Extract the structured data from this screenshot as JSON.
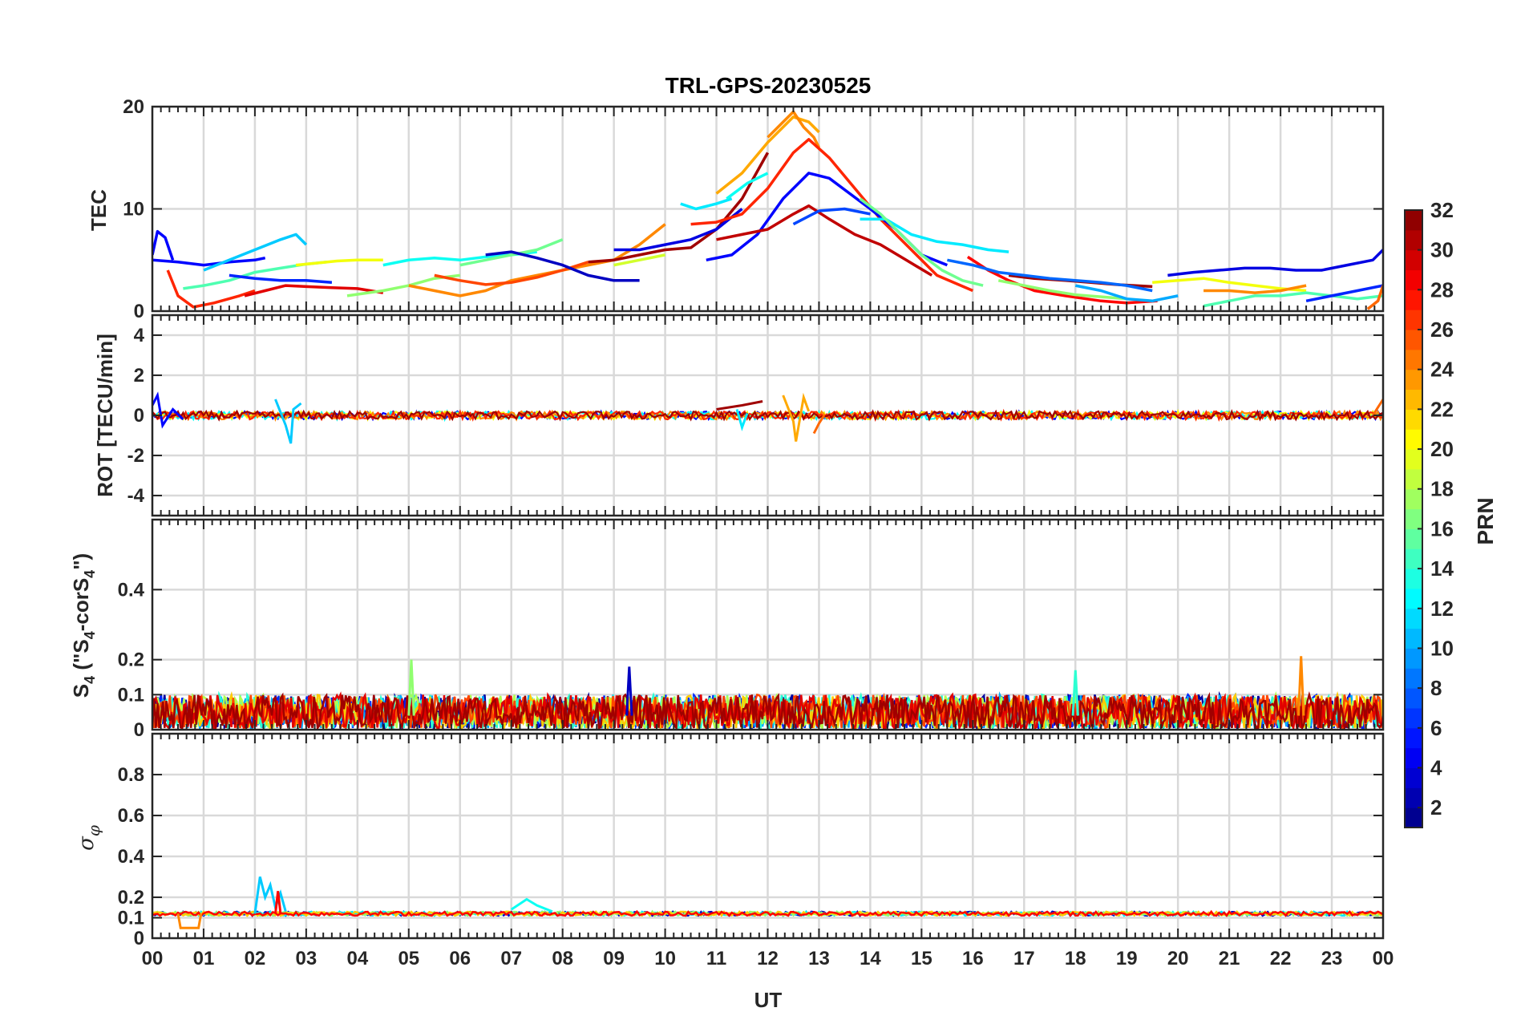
{
  "title": "TRL-GPS-20230525",
  "xlabel": "UT",
  "x_tick_labels": [
    "00",
    "01",
    "02",
    "03",
    "04",
    "05",
    "06",
    "07",
    "08",
    "09",
    "10",
    "11",
    "12",
    "13",
    "14",
    "15",
    "16",
    "17",
    "18",
    "19",
    "20",
    "21",
    "22",
    "23",
    "00"
  ],
  "panels": [
    {
      "key": "tec",
      "ylabel": "TEC",
      "ylim": [
        0,
        20
      ],
      "yticks": [
        0,
        10,
        20
      ],
      "ytick_labels": [
        "0",
        "10",
        "20"
      ],
      "grid_y": [
        10
      ]
    },
    {
      "key": "rot",
      "ylabel": "ROT [TECU/min]",
      "ylim": [
        -5,
        5
      ],
      "yticks": [
        -4,
        -2,
        0,
        2,
        4
      ],
      "ytick_labels": [
        "-4",
        "-2",
        "0",
        "2",
        "4"
      ],
      "grid_y": [
        -4,
        -2,
        0,
        2,
        4
      ]
    },
    {
      "key": "s4",
      "ylabel_main": "S",
      "ylabel_sub1": "4",
      "ylabel_mid": " (\"S",
      "ylabel_sub2": "4",
      "ylabel_mid2": "-corS",
      "ylabel_sub3": "4",
      "ylabel_end": "\")",
      "ylim": [
        0,
        0.6
      ],
      "yticks": [
        0,
        0.1,
        0.2,
        0.4
      ],
      "ytick_labels": [
        "0",
        "0.1",
        "0.2",
        "0.4"
      ],
      "grid_y": [
        0.1,
        0.2,
        0.4
      ]
    },
    {
      "key": "sigma",
      "ylabel_symbol": "σ",
      "ylabel_sub": "φ",
      "ylim": [
        0,
        1
      ],
      "yticks": [
        0,
        0.1,
        0.2,
        0.4,
        0.6,
        0.8
      ],
      "ytick_labels": [
        "0",
        "0.1",
        "0.2",
        "0.4",
        "0.6",
        "0.8"
      ],
      "grid_y": [
        0.1,
        0.2,
        0.4,
        0.6,
        0.8
      ]
    }
  ],
  "colorbar": {
    "label": "PRN",
    "range": [
      1,
      32
    ],
    "tick_values": [
      2,
      4,
      6,
      8,
      10,
      12,
      14,
      16,
      18,
      20,
      22,
      24,
      26,
      28,
      30,
      32
    ],
    "tick_labels": [
      "2",
      "4",
      "6",
      "8",
      "10",
      "12",
      "14",
      "16",
      "18",
      "20",
      "22",
      "24",
      "26",
      "28",
      "30",
      "32"
    ],
    "colormap": "jet"
  },
  "chart_data": {
    "type": "line",
    "title": "TRL-GPS-20230525",
    "xlabel": "UT",
    "xlim": [
      0,
      24
    ],
    "grid": true,
    "tec_series": [
      {
        "prn": 5,
        "x": [
          0.0,
          0.1,
          0.25,
          0.4
        ],
        "y": [
          5.5,
          7.8,
          7.2,
          5.0
        ]
      },
      {
        "prn": 5,
        "x": [
          0.0,
          0.5,
          1.0,
          1.5,
          2.0,
          2.2
        ],
        "y": [
          5.0,
          4.8,
          4.5,
          4.8,
          5.0,
          5.2
        ]
      },
      {
        "prn": 11,
        "x": [
          1.0,
          1.5,
          2.0,
          2.5,
          2.8,
          3.0
        ],
        "y": [
          4.0,
          5.0,
          6.0,
          7.0,
          7.5,
          6.5
        ]
      },
      {
        "prn": 15,
        "x": [
          0.6,
          1.0,
          1.5,
          2.0,
          2.5,
          3.0,
          3.4
        ],
        "y": [
          2.2,
          2.5,
          3.0,
          3.8,
          4.2,
          4.6,
          4.8
        ]
      },
      {
        "prn": 20,
        "x": [
          2.8,
          3.2,
          3.6,
          4.0,
          4.5
        ],
        "y": [
          4.5,
          4.7,
          4.9,
          5.0,
          5.0
        ]
      },
      {
        "prn": 27,
        "x": [
          0.3,
          0.5,
          0.8,
          1.2,
          1.7,
          2.0
        ],
        "y": [
          4.0,
          1.5,
          0.4,
          0.8,
          1.5,
          2.0
        ]
      },
      {
        "prn": 29,
        "x": [
          1.8,
          2.2,
          2.6,
          3.0,
          3.5,
          4.0,
          4.5
        ],
        "y": [
          1.5,
          2.0,
          2.5,
          2.4,
          2.3,
          2.2,
          1.8
        ]
      },
      {
        "prn": 6,
        "x": [
          1.5,
          2.0,
          2.5,
          3.0,
          3.5
        ],
        "y": [
          3.5,
          3.2,
          3.0,
          3.0,
          2.8
        ]
      },
      {
        "prn": 17,
        "x": [
          3.8,
          4.5,
          5.0,
          5.5,
          6.0
        ],
        "y": [
          1.5,
          2.0,
          2.5,
          3.2,
          3.5
        ]
      },
      {
        "prn": 13,
        "x": [
          4.5,
          5.0,
          5.5,
          6.0,
          6.5,
          7.0,
          7.5
        ],
        "y": [
          4.5,
          5.0,
          5.2,
          5.0,
          5.3,
          5.5,
          5.8
        ]
      },
      {
        "prn": 16,
        "x": [
          6.0,
          6.5,
          7.0,
          7.5,
          8.0
        ],
        "y": [
          4.5,
          5.0,
          5.5,
          6.0,
          7.0
        ]
      },
      {
        "prn": 24,
        "x": [
          5.0,
          5.5,
          6.0,
          6.5,
          7.0,
          7.5,
          8.0,
          8.5,
          9.0,
          9.5,
          10.0
        ],
        "y": [
          2.5,
          2.0,
          1.5,
          2.0,
          3.0,
          3.5,
          4.0,
          4.5,
          5.0,
          6.5,
          8.5
        ]
      },
      {
        "prn": 26,
        "x": [
          5.5,
          6.0,
          6.5,
          7.0,
          7.5,
          8.0,
          8.5
        ],
        "y": [
          3.5,
          3.0,
          2.6,
          2.8,
          3.3,
          4.0,
          4.8
        ]
      },
      {
        "prn": 3,
        "x": [
          6.5,
          7.0,
          7.5,
          8.0,
          8.5,
          9.0,
          9.5
        ],
        "y": [
          5.5,
          5.8,
          5.2,
          4.5,
          3.5,
          3.0,
          3.0
        ]
      },
      {
        "prn": 31,
        "x": [
          8.5,
          9.0,
          9.5,
          10.0,
          10.5,
          11.0,
          11.5,
          12.0
        ],
        "y": [
          4.8,
          5.0,
          5.5,
          6.0,
          6.2,
          8.0,
          11.0,
          15.5
        ]
      },
      {
        "prn": 4,
        "x": [
          9.0,
          9.5,
          10.0,
          10.5,
          11.0,
          11.5
        ],
        "y": [
          6.0,
          6.0,
          6.5,
          7.0,
          8.0,
          10.0
        ]
      },
      {
        "prn": 19,
        "x": [
          9.0,
          9.5,
          10.0
        ],
        "y": [
          4.5,
          5.0,
          5.5
        ]
      },
      {
        "prn": 12,
        "x": [
          10.3,
          10.6,
          11.0,
          11.3
        ],
        "y": [
          10.5,
          10.0,
          10.5,
          11.0
        ]
      },
      {
        "prn": 13,
        "x": [
          11.2,
          11.6,
          12.0
        ],
        "y": [
          11.0,
          12.5,
          13.5
        ]
      },
      {
        "prn": 23,
        "x": [
          11.0,
          11.5,
          12.0,
          12.3,
          12.5,
          12.8,
          13.0
        ],
        "y": [
          11.5,
          13.5,
          16.5,
          18.0,
          19.0,
          18.5,
          17.5
        ]
      },
      {
        "prn": 24,
        "x": [
          12.0,
          12.3,
          12.5,
          12.7,
          12.9,
          13.0
        ],
        "y": [
          17.0,
          18.5,
          19.5,
          18.0,
          17.0,
          16.0
        ]
      },
      {
        "prn": 27,
        "x": [
          10.5,
          11.0,
          11.5,
          12.0,
          12.5,
          12.8,
          13.2,
          13.7,
          14.2,
          14.8,
          15.3,
          16.0
        ],
        "y": [
          8.5,
          8.7,
          9.5,
          12.0,
          15.5,
          16.8,
          15.0,
          12.0,
          9.0,
          6.0,
          3.5,
          2.0
        ]
      },
      {
        "prn": 5,
        "x": [
          10.8,
          11.3,
          11.8,
          12.3,
          12.8,
          13.2,
          13.6,
          14.0,
          14.5,
          15.0,
          15.5
        ],
        "y": [
          5.0,
          5.5,
          7.5,
          11.0,
          13.5,
          13.0,
          11.5,
          10.0,
          8.0,
          5.5,
          4.5
        ]
      },
      {
        "prn": 30,
        "x": [
          11.0,
          11.5,
          12.0,
          12.5,
          12.8,
          13.2,
          13.7,
          14.2,
          14.7,
          15.2
        ],
        "y": [
          7.0,
          7.5,
          8.0,
          9.5,
          10.3,
          9.0,
          7.5,
          6.5,
          5.0,
          3.5
        ]
      },
      {
        "prn": 7,
        "x": [
          12.5,
          13.0,
          13.5,
          14.0
        ],
        "y": [
          8.5,
          9.8,
          10.0,
          9.5
        ]
      },
      {
        "prn": 12,
        "x": [
          13.8,
          14.3,
          14.8,
          15.3,
          15.8,
          16.3,
          16.7
        ],
        "y": [
          9.0,
          9.0,
          7.5,
          6.8,
          6.5,
          6.0,
          5.8
        ]
      },
      {
        "prn": 16,
        "x": [
          13.8,
          14.2,
          14.6,
          15.0,
          15.4,
          15.8,
          16.2
        ],
        "y": [
          11.0,
          9.5,
          7.5,
          5.5,
          4.0,
          3.0,
          2.5
        ]
      },
      {
        "prn": 28,
        "x": [
          15.9,
          16.3,
          16.7,
          17.2,
          17.8,
          18.5,
          19.0,
          19.6
        ],
        "y": [
          5.3,
          4.0,
          3.0,
          2.0,
          1.5,
          1.0,
          0.8,
          1.0
        ]
      },
      {
        "prn": 31,
        "x": [
          16.7,
          17.2,
          17.8,
          18.3,
          18.8,
          19.5
        ],
        "y": [
          3.5,
          3.2,
          3.0,
          2.8,
          2.6,
          2.4
        ]
      },
      {
        "prn": 17,
        "x": [
          16.5,
          17.0,
          17.5,
          18.0,
          18.5,
          19.0
        ],
        "y": [
          3.0,
          2.5,
          2.0,
          1.6,
          1.4,
          1.2
        ]
      },
      {
        "prn": 8,
        "x": [
          15.5,
          16.0,
          16.5,
          17.0,
          17.5,
          18.0,
          18.5,
          19.0,
          19.5
        ],
        "y": [
          5.0,
          4.5,
          3.8,
          3.5,
          3.2,
          3.0,
          2.8,
          2.5,
          2.0
        ]
      },
      {
        "prn": 4,
        "x": [
          19.8,
          20.3,
          20.8,
          21.3,
          21.8,
          22.3,
          22.8,
          23.3,
          23.8,
          24.0
        ],
        "y": [
          3.5,
          3.8,
          4.0,
          4.2,
          4.2,
          4.0,
          4.0,
          4.5,
          5.0,
          6.0
        ]
      },
      {
        "prn": 10,
        "x": [
          18.0,
          18.5,
          19.0,
          19.5,
          20.0
        ],
        "y": [
          2.5,
          2.0,
          1.2,
          1.0,
          1.5
        ]
      },
      {
        "prn": 20,
        "x": [
          19.5,
          20.0,
          20.5,
          21.0,
          21.5,
          22.0,
          22.5
        ],
        "y": [
          2.8,
          3.0,
          3.2,
          2.8,
          2.5,
          2.2,
          2.0
        ]
      },
      {
        "prn": 24,
        "x": [
          20.5,
          21.0,
          21.5,
          22.0,
          22.5
        ],
        "y": [
          2.0,
          2.0,
          1.8,
          2.0,
          2.5
        ]
      },
      {
        "prn": 15,
        "x": [
          20.5,
          21.0,
          21.5,
          22.0,
          22.5,
          23.0,
          23.5,
          24.0
        ],
        "y": [
          0.5,
          1.0,
          1.5,
          1.5,
          1.8,
          1.5,
          1.2,
          1.5
        ]
      },
      {
        "prn": 6,
        "x": [
          22.5,
          23.0,
          23.5,
          24.0
        ],
        "y": [
          1.0,
          1.5,
          2.0,
          2.5
        ]
      },
      {
        "prn": 25,
        "x": [
          23.7,
          23.9,
          24.0
        ],
        "y": [
          0.2,
          1.0,
          2.5
        ]
      }
    ],
    "rot_series": [
      {
        "prn": 5,
        "x": [
          0.0,
          0.1,
          0.2,
          0.4,
          0.6
        ],
        "y": [
          0.5,
          1.0,
          -0.5,
          0.3,
          -0.2
        ]
      },
      {
        "prn": 11,
        "x": [
          2.4,
          2.6,
          2.7,
          2.75,
          2.9
        ],
        "y": [
          0.8,
          -0.5,
          -1.4,
          0.3,
          0.6
        ]
      },
      {
        "prn": 23,
        "x": [
          12.3,
          12.5,
          12.55,
          12.7,
          12.8
        ],
        "y": [
          1.0,
          -0.3,
          -1.3,
          0.9,
          0.2
        ]
      },
      {
        "prn": 25,
        "x": [
          12.9,
          13.0,
          13.1
        ],
        "y": [
          -0.9,
          -0.4,
          0.0
        ]
      },
      {
        "prn": 12,
        "x": [
          11.4,
          11.5,
          11.6
        ],
        "y": [
          0.3,
          -0.6,
          0.1
        ]
      },
      {
        "prn": 31,
        "x": [
          11.0,
          11.5,
          11.9
        ],
        "y": [
          0.3,
          0.5,
          0.7
        ]
      },
      {
        "prn": 25,
        "x": [
          23.8,
          23.95,
          24.0
        ],
        "y": [
          0.0,
          0.6,
          0.8
        ]
      }
    ],
    "rot_baseline": {
      "level": 0,
      "spread": 0.2
    },
    "s4_baseline": {
      "level": 0.05,
      "spread": 0.05,
      "peak_examples": [
        {
          "prn": 17,
          "x": 5.05,
          "y": 0.2
        },
        {
          "prn": 24,
          "x": 22.4,
          "y": 0.21
        },
        {
          "prn": 14,
          "x": 18.0,
          "y": 0.17
        },
        {
          "prn": 3,
          "x": 9.3,
          "y": 0.18
        }
      ]
    },
    "sigma_baseline": {
      "level": 0.12,
      "spread": 0.01
    },
    "sigma_series": [
      {
        "prn": 11,
        "x": [
          2.0,
          2.1,
          2.2,
          2.3,
          2.4,
          2.5,
          2.6
        ],
        "y": [
          0.12,
          0.3,
          0.2,
          0.26,
          0.15,
          0.22,
          0.13
        ]
      },
      {
        "prn": 28,
        "x": [
          2.4,
          2.45,
          2.5
        ],
        "y": [
          0.12,
          0.23,
          0.12
        ]
      },
      {
        "prn": 24,
        "x": [
          0.5,
          0.55,
          0.6,
          0.9,
          0.95
        ],
        "y": [
          0.12,
          0.05,
          0.05,
          0.05,
          0.12
        ]
      },
      {
        "prn": 13,
        "x": [
          7.0,
          7.3,
          7.5,
          7.8
        ],
        "y": [
          0.14,
          0.19,
          0.16,
          0.13
        ]
      }
    ]
  }
}
